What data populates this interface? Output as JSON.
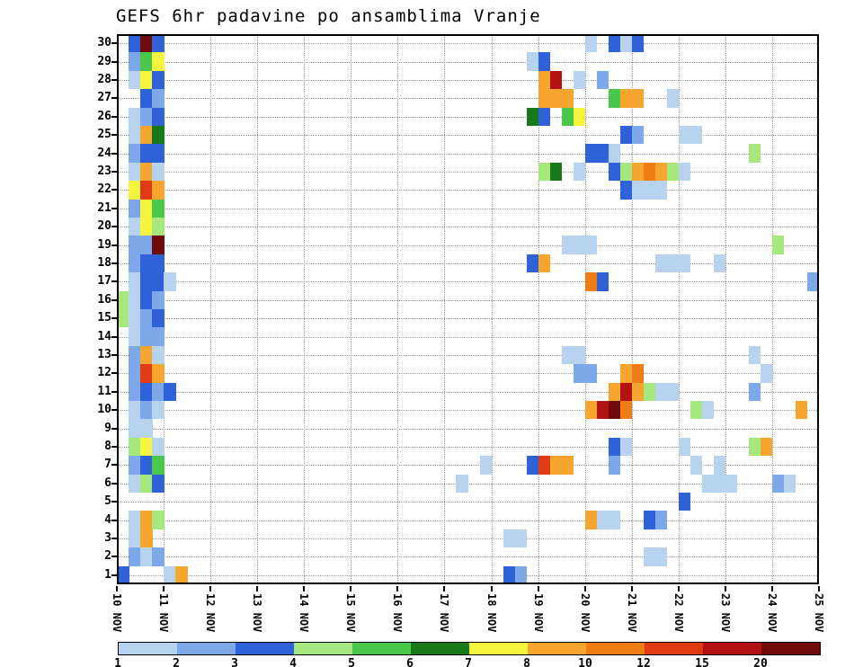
{
  "title": "GEFS 6hr padavine po ansamblima Vranje",
  "chart_data": {
    "type": "heatmap",
    "title": "GEFS 6hr padavine po ansamblima Vranje",
    "xlabel": "",
    "ylabel": "",
    "x_tick_labels": [
      "10 NOV",
      "11 NOV",
      "12 NOV",
      "13 NOV",
      "14 NOV",
      "15 NOV",
      "16 NOV",
      "17 NOV",
      "18 NOV",
      "19 NOV",
      "20 NOV",
      "21 NOV",
      "22 NOV",
      "23 NOV",
      "24 NOV",
      "25 NOV"
    ],
    "steps_per_day": 4,
    "n_time_steps": 60,
    "y_ticks": [
      1,
      2,
      3,
      4,
      5,
      6,
      7,
      8,
      9,
      10,
      11,
      12,
      13,
      14,
      15,
      16,
      17,
      18,
      19,
      20,
      21,
      22,
      23,
      24,
      25,
      26,
      27,
      28,
      29,
      30
    ],
    "y_range": [
      1,
      30
    ],
    "grid": "dotted",
    "legend_position": "bottom",
    "legend_edges": [
      1,
      2,
      3,
      4,
      5,
      6,
      7,
      8,
      10,
      12,
      15,
      20
    ],
    "legend_colors": [
      "#b7d3f0",
      "#7da8ea",
      "#2f62d8",
      "#a6e87e",
      "#49c84a",
      "#177917",
      "#f5f53e",
      "#f6a62e",
      "#ef7c14",
      "#df3a12",
      "#b31212",
      "#700b0b"
    ],
    "cells": [
      [
        30,
        1,
        3.5
      ],
      [
        30,
        2,
        25
      ],
      [
        30,
        3,
        3.5
      ],
      [
        29,
        1,
        2.5
      ],
      [
        29,
        2,
        5.5
      ],
      [
        29,
        3,
        7.5
      ],
      [
        28,
        1,
        1.5
      ],
      [
        28,
        2,
        7.5
      ],
      [
        28,
        3,
        3.5
      ],
      [
        27,
        2,
        3.5
      ],
      [
        27,
        3,
        2.5
      ],
      [
        26,
        1,
        1.5
      ],
      [
        26,
        2,
        2.5
      ],
      [
        26,
        3,
        3.5
      ],
      [
        25,
        1,
        1.5
      ],
      [
        25,
        2,
        9
      ],
      [
        25,
        3,
        6.5
      ],
      [
        24,
        1,
        2.5
      ],
      [
        24,
        2,
        3.5
      ],
      [
        24,
        3,
        3.5
      ],
      [
        23,
        1,
        1.5
      ],
      [
        23,
        2,
        9
      ],
      [
        23,
        3,
        1.5
      ],
      [
        22,
        1,
        7.5
      ],
      [
        22,
        2,
        13
      ],
      [
        22,
        3,
        9
      ],
      [
        21,
        1,
        2.5
      ],
      [
        21,
        2,
        7.5
      ],
      [
        21,
        3,
        5.5
      ],
      [
        20,
        1,
        1.5
      ],
      [
        20,
        2,
        7.5
      ],
      [
        20,
        3,
        4.5
      ],
      [
        19,
        1,
        2.5
      ],
      [
        19,
        2,
        2.5
      ],
      [
        19,
        3,
        25
      ],
      [
        18,
        1,
        2.5
      ],
      [
        18,
        2,
        3.5
      ],
      [
        18,
        3,
        3.5
      ],
      [
        17,
        1,
        1.5
      ],
      [
        17,
        2,
        3.5
      ],
      [
        17,
        3,
        3.5
      ],
      [
        17,
        4,
        1.5
      ],
      [
        16,
        0,
        4.5
      ],
      [
        16,
        1,
        1.5
      ],
      [
        16,
        2,
        3.5
      ],
      [
        16,
        3,
        2.5
      ],
      [
        15,
        0,
        4.5
      ],
      [
        15,
        1,
        1.5
      ],
      [
        15,
        2,
        2.5
      ],
      [
        15,
        3,
        3.5
      ],
      [
        14,
        1,
        1.5
      ],
      [
        14,
        2,
        2.5
      ],
      [
        14,
        3,
        2.5
      ],
      [
        13,
        1,
        2.5
      ],
      [
        13,
        2,
        9
      ],
      [
        13,
        3,
        1.5
      ],
      [
        12,
        1,
        2.5
      ],
      [
        12,
        2,
        13
      ],
      [
        12,
        3,
        9
      ],
      [
        11,
        1,
        2.5
      ],
      [
        11,
        2,
        3.5
      ],
      [
        11,
        3,
        2.5
      ],
      [
        11,
        4,
        3.5
      ],
      [
        10,
        1,
        1.5
      ],
      [
        10,
        2,
        2.5
      ],
      [
        10,
        3,
        1.5
      ],
      [
        9,
        1,
        1.5
      ],
      [
        9,
        2,
        1.5
      ],
      [
        8,
        1,
        4.5
      ],
      [
        8,
        2,
        7.5
      ],
      [
        8,
        3,
        1.5
      ],
      [
        7,
        1,
        2.5
      ],
      [
        7,
        2,
        3.5
      ],
      [
        7,
        3,
        5.5
      ],
      [
        6,
        1,
        1.5
      ],
      [
        6,
        2,
        4.5
      ],
      [
        6,
        3,
        3.5
      ],
      [
        4,
        1,
        1.5
      ],
      [
        4,
        2,
        9
      ],
      [
        4,
        3,
        4.5
      ],
      [
        3,
        1,
        1.5
      ],
      [
        3,
        2,
        9
      ],
      [
        2,
        1,
        2.5
      ],
      [
        2,
        2,
        1.5
      ],
      [
        2,
        3,
        2.5
      ],
      [
        1,
        0,
        3.5
      ],
      [
        1,
        4,
        1.5
      ],
      [
        1,
        5,
        9
      ],
      [
        30,
        40,
        1.5
      ],
      [
        30,
        42,
        3.5
      ],
      [
        30,
        43,
        1.5
      ],
      [
        30,
        44,
        3.5
      ],
      [
        29,
        35,
        1.5
      ],
      [
        29,
        36,
        3.5
      ],
      [
        28,
        36,
        9
      ],
      [
        28,
        37,
        17
      ],
      [
        28,
        39,
        1.5
      ],
      [
        28,
        41,
        2.5
      ],
      [
        27,
        36,
        9
      ],
      [
        27,
        37,
        9
      ],
      [
        27,
        38,
        9
      ],
      [
        27,
        42,
        5.5
      ],
      [
        27,
        43,
        9
      ],
      [
        27,
        44,
        9
      ],
      [
        27,
        47,
        1.5
      ],
      [
        26,
        35,
        6.5
      ],
      [
        26,
        36,
        3.5
      ],
      [
        26,
        38,
        5.5
      ],
      [
        26,
        39,
        7.5
      ],
      [
        25,
        43,
        3.5
      ],
      [
        25,
        44,
        2.5
      ],
      [
        25,
        48,
        1.5
      ],
      [
        25,
        49,
        1.5
      ],
      [
        24,
        40,
        3.5
      ],
      [
        24,
        41,
        3.5
      ],
      [
        24,
        42,
        1.5
      ],
      [
        24,
        54,
        4.5
      ],
      [
        23,
        36,
        4.5
      ],
      [
        23,
        37,
        6.5
      ],
      [
        23,
        39,
        1.5
      ],
      [
        23,
        42,
        3.5
      ],
      [
        23,
        43,
        4.5
      ],
      [
        23,
        44,
        9
      ],
      [
        23,
        45,
        11
      ],
      [
        23,
        46,
        9
      ],
      [
        23,
        47,
        4.5
      ],
      [
        23,
        48,
        1.5
      ],
      [
        22,
        43,
        3.5
      ],
      [
        22,
        44,
        1.5
      ],
      [
        22,
        45,
        1.5
      ],
      [
        22,
        46,
        1.5
      ],
      [
        19,
        38,
        1.5
      ],
      [
        19,
        39,
        1.5
      ],
      [
        19,
        40,
        1.5
      ],
      [
        19,
        56,
        4.5
      ],
      [
        18,
        35,
        3.5
      ],
      [
        18,
        36,
        9
      ],
      [
        18,
        46,
        1.5
      ],
      [
        18,
        47,
        1.5
      ],
      [
        18,
        48,
        1.5
      ],
      [
        18,
        51,
        1.5
      ],
      [
        17,
        40,
        11
      ],
      [
        17,
        41,
        3.5
      ],
      [
        17,
        59,
        2.5
      ],
      [
        13,
        38,
        1.5
      ],
      [
        13,
        39,
        1.5
      ],
      [
        13,
        54,
        1.5
      ],
      [
        12,
        39,
        2.5
      ],
      [
        12,
        40,
        2.5
      ],
      [
        12,
        43,
        9
      ],
      [
        12,
        44,
        11
      ],
      [
        12,
        55,
        1.5
      ],
      [
        11,
        42,
        9
      ],
      [
        11,
        43,
        17
      ],
      [
        11,
        44,
        9
      ],
      [
        11,
        45,
        4.5
      ],
      [
        11,
        46,
        1.5
      ],
      [
        11,
        47,
        1.5
      ],
      [
        11,
        54,
        2.5
      ],
      [
        10,
        40,
        9
      ],
      [
        10,
        41,
        17
      ],
      [
        10,
        42,
        25
      ],
      [
        10,
        43,
        11
      ],
      [
        10,
        49,
        4.5
      ],
      [
        10,
        50,
        1.5
      ],
      [
        10,
        58,
        9
      ],
      [
        8,
        42,
        3.5
      ],
      [
        8,
        43,
        1.5
      ],
      [
        8,
        48,
        1.5
      ],
      [
        8,
        54,
        4.5
      ],
      [
        8,
        55,
        9
      ],
      [
        7,
        31,
        1.5
      ],
      [
        7,
        35,
        3.5
      ],
      [
        7,
        36,
        13
      ],
      [
        7,
        37,
        9
      ],
      [
        7,
        38,
        9
      ],
      [
        7,
        42,
        2.5
      ],
      [
        7,
        49,
        1.5
      ],
      [
        7,
        51,
        1.5
      ],
      [
        6,
        29,
        1.5
      ],
      [
        6,
        50,
        1.5
      ],
      [
        6,
        51,
        1.5
      ],
      [
        6,
        52,
        1.5
      ],
      [
        6,
        56,
        2.5
      ],
      [
        6,
        57,
        1.5
      ],
      [
        5,
        48,
        3.5
      ],
      [
        4,
        40,
        9
      ],
      [
        4,
        41,
        1.5
      ],
      [
        4,
        42,
        1.5
      ],
      [
        4,
        45,
        3.5
      ],
      [
        4,
        46,
        2.5
      ],
      [
        3,
        33,
        1.5
      ],
      [
        3,
        34,
        1.5
      ],
      [
        2,
        45,
        1.5
      ],
      [
        2,
        46,
        1.5
      ],
      [
        1,
        33,
        3.5
      ],
      [
        1,
        34,
        2.5
      ]
    ]
  }
}
